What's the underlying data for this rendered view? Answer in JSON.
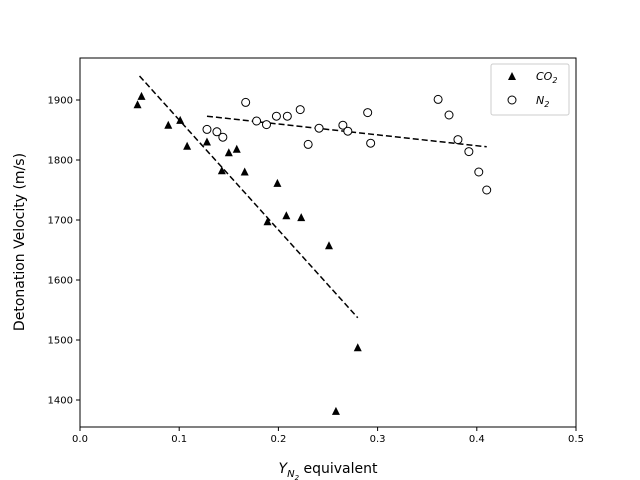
{
  "chart_data": {
    "type": "scatter",
    "xlabel_main": "Y",
    "xlabel_sub": "N",
    "xlabel_subsub": "2",
    "xlabel_rest": " equivalent",
    "ylabel": "Detonation Velocity (m/s)",
    "xlim": [
      0.0,
      0.5
    ],
    "ylim": [
      1355,
      1970
    ],
    "x_ticks": [
      "0.0",
      "0.1",
      "0.2",
      "0.3",
      "0.4",
      "0.5"
    ],
    "y_ticks": [
      "1400",
      "1500",
      "1600",
      "1700",
      "1800",
      "1900"
    ],
    "grid": false,
    "legend_position": "top-right",
    "series": [
      {
        "name": "CO",
        "name_sub": "2",
        "marker": "filled-triangle",
        "color": "#000000",
        "points": [
          [
            0.058,
            1892
          ],
          [
            0.062,
            1906
          ],
          [
            0.089,
            1858
          ],
          [
            0.101,
            1866
          ],
          [
            0.108,
            1823
          ],
          [
            0.128,
            1830
          ],
          [
            0.143,
            1782
          ],
          [
            0.15,
            1812
          ],
          [
            0.158,
            1818
          ],
          [
            0.166,
            1780
          ],
          [
            0.189,
            1697
          ],
          [
            0.199,
            1761
          ],
          [
            0.208,
            1707
          ],
          [
            0.223,
            1704
          ],
          [
            0.251,
            1657
          ],
          [
            0.258,
            1381
          ],
          [
            0.28,
            1487
          ]
        ],
        "trend": [
          [
            0.06,
            1940
          ],
          [
            0.28,
            1537
          ]
        ]
      },
      {
        "name": "N",
        "name_sub": "2",
        "marker": "open-circle",
        "color": "#000000",
        "points": [
          [
            0.128,
            1851
          ],
          [
            0.138,
            1847
          ],
          [
            0.144,
            1838
          ],
          [
            0.167,
            1896
          ],
          [
            0.178,
            1865
          ],
          [
            0.188,
            1859
          ],
          [
            0.198,
            1873
          ],
          [
            0.209,
            1873
          ],
          [
            0.222,
            1884
          ],
          [
            0.23,
            1826
          ],
          [
            0.241,
            1853
          ],
          [
            0.265,
            1858
          ],
          [
            0.27,
            1848
          ],
          [
            0.29,
            1879
          ],
          [
            0.293,
            1828
          ],
          [
            0.361,
            1901
          ],
          [
            0.372,
            1875
          ],
          [
            0.381,
            1834
          ],
          [
            0.392,
            1814
          ],
          [
            0.402,
            1780
          ],
          [
            0.41,
            1750
          ]
        ],
        "trend": [
          [
            0.128,
            1873
          ],
          [
            0.41,
            1822
          ]
        ]
      }
    ]
  }
}
